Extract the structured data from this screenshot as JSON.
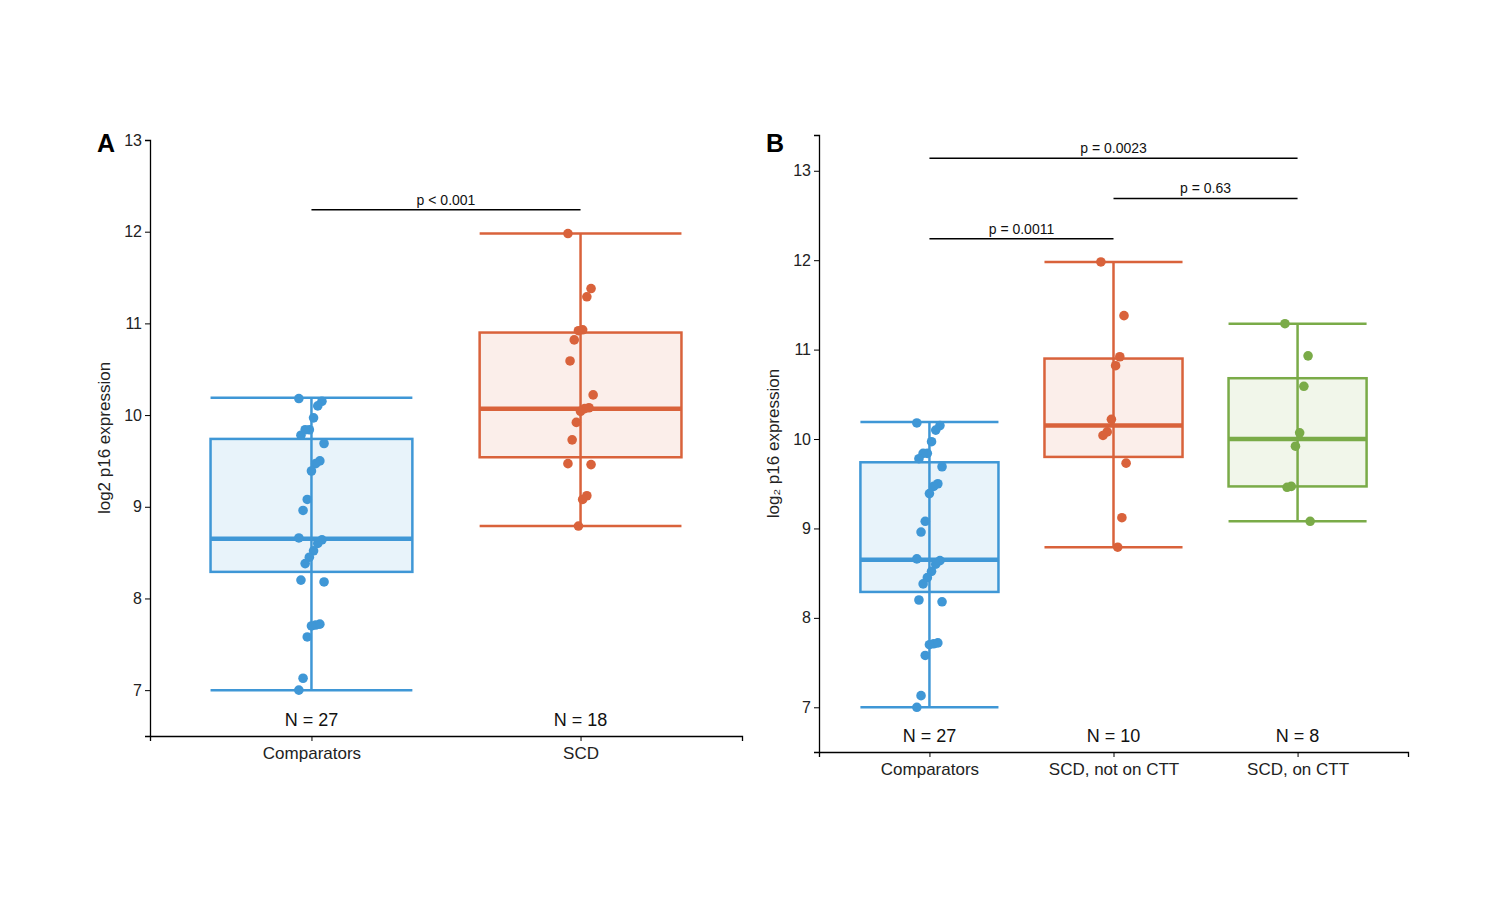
{
  "chart_data": [
    {
      "type": "box",
      "panel_label": "A",
      "y_label": "log2 p16 expression",
      "categories": [
        "Comparators",
        "SCD"
      ],
      "colors": [
        "#3f97d6",
        "#d9623b"
      ],
      "fill_colors": [
        "#e8f3fa",
        "#fbeeea"
      ],
      "n_labels": [
        "N = 27",
        "N = 18"
      ],
      "boxes": [
        {
          "whisker_low": 7.0,
          "q1": 8.29,
          "median": 8.65,
          "q3": 9.74,
          "whisker_high": 10.19
        },
        {
          "whisker_low": 8.79,
          "q1": 9.54,
          "median": 10.07,
          "q3": 10.9,
          "whisker_high": 11.98
        }
      ],
      "points": [
        [
          10.18,
          10.15,
          10.1,
          9.97,
          9.84,
          9.84,
          9.78,
          9.69,
          9.5,
          9.47,
          9.39,
          9.08,
          8.96,
          8.66,
          8.64,
          8.6,
          8.52,
          8.45,
          8.38,
          8.2,
          8.18,
          7.72,
          7.71,
          7.7,
          7.58,
          7.13,
          7.0
        ],
        [
          11.98,
          11.38,
          11.29,
          10.93,
          10.92,
          10.82,
          10.59,
          10.22,
          10.08,
          10.07,
          10.04,
          9.92,
          9.73,
          9.47,
          9.46,
          9.12,
          9.08,
          8.79
        ]
      ],
      "comparisons": [
        {
          "from": 0,
          "to": 1,
          "label": "p < 0.001"
        }
      ],
      "ylim": [
        6.5,
        13
      ],
      "yticks": [
        7,
        8,
        9,
        10,
        11,
        12,
        13
      ]
    },
    {
      "type": "box",
      "panel_label": "B",
      "y_label": "log₂ p16 expression",
      "categories": [
        "Comparators",
        "SCD, not on CTT",
        "SCD, on CTT"
      ],
      "colors": [
        "#3f97d6",
        "#d9623b",
        "#7aab48"
      ],
      "fill_colors": [
        "#e8f3fa",
        "#fbeeea",
        "#f1f6ea"
      ],
      "n_labels": [
        "N = 27",
        "N = 10",
        "N = 8"
      ],
      "boxes": [
        {
          "whisker_low": 7.0,
          "q1": 8.29,
          "median": 8.65,
          "q3": 9.74,
          "whisker_high": 10.19
        },
        {
          "whisker_low": 8.79,
          "q1": 9.8,
          "median": 10.15,
          "q3": 10.9,
          "whisker_high": 11.98
        },
        {
          "whisker_low": 9.08,
          "q1": 9.47,
          "median": 10.0,
          "q3": 10.68,
          "whisker_high": 11.29
        }
      ],
      "points": [
        [
          10.18,
          10.15,
          10.1,
          9.97,
          9.84,
          9.84,
          9.78,
          9.69,
          9.5,
          9.47,
          9.39,
          9.08,
          8.96,
          8.66,
          8.64,
          8.6,
          8.52,
          8.45,
          8.38,
          8.2,
          8.18,
          7.72,
          7.71,
          7.7,
          7.58,
          7.13,
          7.0
        ],
        [
          11.98,
          11.38,
          10.92,
          10.82,
          10.22,
          10.08,
          10.04,
          9.73,
          9.12,
          8.79
        ],
        [
          11.29,
          10.93,
          10.59,
          10.07,
          9.92,
          9.47,
          9.46,
          9.08
        ]
      ],
      "comparisons": [
        {
          "from": 0,
          "to": 1,
          "label": "p = 0.0011"
        },
        {
          "from": 1,
          "to": 2,
          "label": "p = 0.63"
        },
        {
          "from": 0,
          "to": 2,
          "label": "p = 0.0023"
        }
      ],
      "ylim": [
        6.5,
        13.4
      ],
      "yticks": [
        7,
        8,
        9,
        10,
        11,
        12,
        13
      ]
    }
  ]
}
